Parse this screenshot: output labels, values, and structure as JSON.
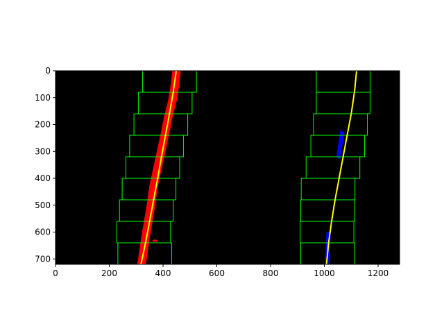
{
  "chart_data": {
    "type": "scatter",
    "title": "",
    "xlabel": "",
    "ylabel": "",
    "xlim": [
      0,
      1280
    ],
    "ylim": [
      720,
      0
    ],
    "y_inverted": true,
    "grid": false,
    "background": "#000000",
    "xticks": [
      0,
      200,
      400,
      600,
      800,
      1000,
      1200
    ],
    "yticks": [
      0,
      100,
      200,
      300,
      400,
      500,
      600,
      700
    ],
    "colors": {
      "left_pixels": "#ff0000",
      "right_pixels": "#0000ff",
      "windows": "#00ff00",
      "fit": "#ffff00"
    },
    "left_lane": {
      "pixels_centerline": [
        [
          450,
          0
        ],
        [
          445,
          50
        ],
        [
          435,
          110
        ],
        [
          420,
          170
        ],
        [
          410,
          220
        ],
        [
          395,
          290
        ],
        [
          380,
          360
        ],
        [
          365,
          430
        ],
        [
          355,
          500
        ],
        [
          345,
          560
        ],
        [
          335,
          620
        ],
        [
          325,
          690
        ],
        [
          320,
          720
        ]
      ],
      "pixel_halfwidth": 16,
      "fit": [
        [
          449,
          0
        ],
        [
          438,
          80
        ],
        [
          424,
          160
        ],
        [
          409,
          240
        ],
        [
          394,
          320
        ],
        [
          380,
          400
        ],
        [
          365,
          480
        ],
        [
          350,
          560
        ],
        [
          335,
          640
        ],
        [
          318,
          720
        ]
      ],
      "windows": [
        {
          "x": [
            232,
            432
          ],
          "y": [
            640,
            720
          ]
        },
        {
          "x": [
            228,
            428
          ],
          "y": [
            560,
            640
          ]
        },
        {
          "x": [
            238,
            438
          ],
          "y": [
            480,
            560
          ]
        },
        {
          "x": [
            248,
            448
          ],
          "y": [
            400,
            480
          ]
        },
        {
          "x": [
            262,
            462
          ],
          "y": [
            320,
            400
          ]
        },
        {
          "x": [
            276,
            476
          ],
          "y": [
            240,
            320
          ]
        },
        {
          "x": [
            292,
            492
          ],
          "y": [
            160,
            240
          ]
        },
        {
          "x": [
            308,
            508
          ],
          "y": [
            80,
            160
          ]
        },
        {
          "x": [
            324,
            524
          ],
          "y": [
            0,
            80
          ]
        }
      ]
    },
    "right_lane": {
      "pixel_segments": [
        [
          [
            1060,
            220
          ],
          [
            1075,
            230
          ],
          [
            1058,
            330
          ],
          [
            1045,
            320
          ]
        ],
        [
          [
            1008,
            600
          ],
          [
            1024,
            600
          ],
          [
            1020,
            720
          ],
          [
            1002,
            720
          ]
        ]
      ],
      "fit": [
        [
          1008,
          720
        ],
        [
          1016,
          640
        ],
        [
          1027,
          560
        ],
        [
          1040,
          480
        ],
        [
          1055,
          400
        ],
        [
          1070,
          320
        ],
        [
          1085,
          240
        ],
        [
          1100,
          160
        ],
        [
          1112,
          80
        ],
        [
          1120,
          0
        ]
      ],
      "windows": [
        {
          "x": [
            912,
            1112
          ],
          "y": [
            640,
            720
          ]
        },
        {
          "x": [
            910,
            1110
          ],
          "y": [
            560,
            640
          ]
        },
        {
          "x": [
            912,
            1112
          ],
          "y": [
            480,
            560
          ]
        },
        {
          "x": [
            914,
            1114
          ],
          "y": [
            400,
            480
          ]
        },
        {
          "x": [
            932,
            1132
          ],
          "y": [
            320,
            400
          ]
        },
        {
          "x": [
            950,
            1150
          ],
          "y": [
            240,
            320
          ]
        },
        {
          "x": [
            960,
            1160
          ],
          "y": [
            160,
            240
          ]
        },
        {
          "x": [
            970,
            1170
          ],
          "y": [
            80,
            160
          ]
        },
        {
          "x": [
            970,
            1170
          ],
          "y": [
            0,
            80
          ]
        }
      ]
    }
  }
}
